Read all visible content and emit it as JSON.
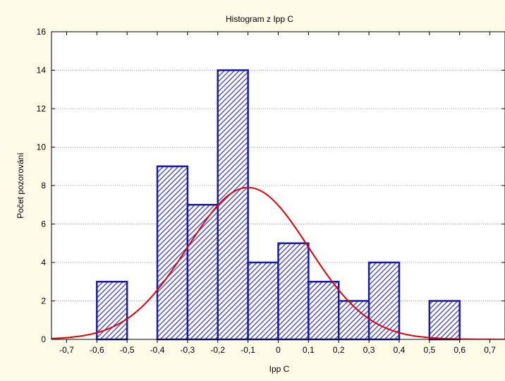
{
  "chart_data": {
    "type": "bar",
    "title": "Histogram z Ipp C",
    "xlabel": "Ipp C",
    "ylabel": "Počet pozorování",
    "xlim": [
      -0.75,
      0.75
    ],
    "ylim": [
      0,
      16
    ],
    "x_ticks": [
      "-0,7",
      "-0,6",
      "-0,5",
      "-0,4",
      "-0,3",
      "-0,2",
      "-0,1",
      "0",
      "0,1",
      "0,2",
      "0,3",
      "0,4",
      "0,5",
      "0,6",
      "0,7"
    ],
    "y_ticks": [
      "0",
      "2",
      "4",
      "6",
      "8",
      "10",
      "12",
      "14",
      "16"
    ],
    "grid": true,
    "bins": [
      {
        "from": -0.6,
        "to": -0.5,
        "count": 3
      },
      {
        "from": -0.4,
        "to": -0.3,
        "count": 9
      },
      {
        "from": -0.3,
        "to": -0.2,
        "count": 7
      },
      {
        "from": -0.2,
        "to": -0.1,
        "count": 14
      },
      {
        "from": -0.1,
        "to": 0.0,
        "count": 4
      },
      {
        "from": 0.0,
        "to": 0.1,
        "count": 5
      },
      {
        "from": 0.1,
        "to": 0.2,
        "count": 3
      },
      {
        "from": 0.2,
        "to": 0.3,
        "count": 2
      },
      {
        "from": 0.3,
        "to": 0.4,
        "count": 4
      },
      {
        "from": 0.5,
        "to": 0.6,
        "count": 2
      }
    ],
    "normal_curve": {
      "mean": -0.1,
      "sd": 0.2,
      "peak": 7.9,
      "color": "#e00000"
    },
    "bar_color": "#1a1aa8",
    "hatch_color": "#3a3ac8"
  }
}
